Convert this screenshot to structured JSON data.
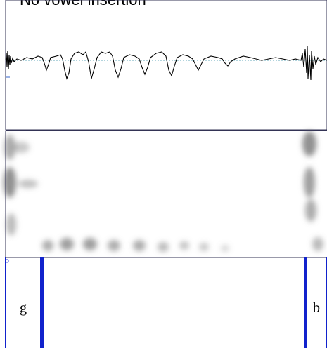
{
  "title": "No vowel insertion",
  "tier": {
    "intervals": [
      {
        "label": "g"
      },
      {
        "label": "b"
      }
    ]
  }
}
